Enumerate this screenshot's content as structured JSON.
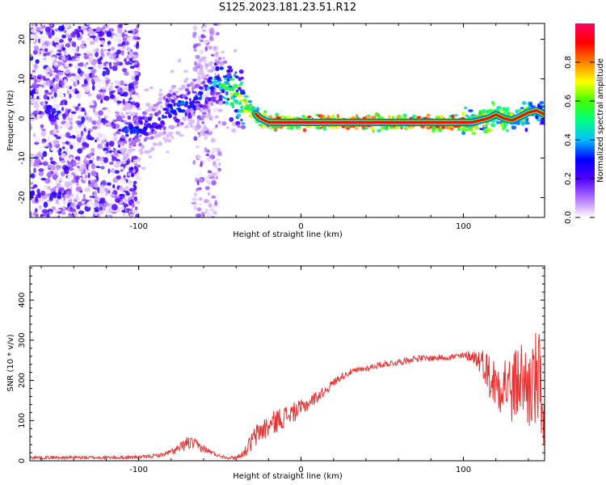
{
  "title": "S125.2023.181.23.51.R12",
  "chart_data": [
    {
      "type": "heatmap",
      "xlabel": "Height of straight line (km)",
      "ylabel": "Frequency (Hz)",
      "xlim": [
        -167,
        150
      ],
      "ylim": [
        -25,
        24
      ],
      "x_ticks": [
        -100,
        0,
        100
      ],
      "y_ticks": [
        -20,
        -10,
        0,
        10,
        20
      ],
      "colorbar": {
        "label": "Normalized spectral amplitude",
        "range": [
          0,
          1
        ],
        "ticks": [
          "0.0",
          "0.2",
          "0.4",
          "0.6",
          "0.8"
        ],
        "stops": [
          "#ffffff",
          "#b070ff",
          "#5000ff",
          "#0000ff",
          "#00c0ff",
          "#00ff80",
          "#40ff00",
          "#ffff00",
          "#ff8000",
          "#ff0000",
          "#ff0060"
        ]
      },
      "ridge": {
        "x": [
          -100,
          -90,
          -80,
          -70,
          -60,
          -52,
          -45,
          -40,
          -35,
          -30,
          -25,
          -20,
          -10,
          0,
          20,
          50,
          80,
          100,
          105,
          110,
          115,
          120,
          125,
          130,
          135,
          140,
          145,
          150
        ],
        "y": [
          -3,
          -1,
          2,
          4,
          6,
          10,
          7,
          5,
          4,
          2,
          0,
          -1,
          -1,
          -1,
          -1,
          -1,
          -1,
          -1,
          -1,
          -0.5,
          0,
          1,
          0,
          -0.5,
          0.5,
          1.5,
          2,
          1
        ],
        "amplitude": [
          0.35,
          0.35,
          0.4,
          0.4,
          0.4,
          0.45,
          0.7,
          0.75,
          0.8,
          0.85,
          0.85,
          0.9,
          0.95,
          0.95,
          0.95,
          0.95,
          0.95,
          0.95,
          0.9,
          0.85,
          0.8,
          0.8,
          0.75,
          0.75,
          0.7,
          0.65,
          0.6,
          0.55
        ]
      }
    },
    {
      "type": "line",
      "xlabel": "Height of straight line (km)",
      "ylabel": "SNR (10 * v/v)",
      "xlim": [
        -167,
        150
      ],
      "ylim": [
        0,
        485
      ],
      "x_ticks": [
        -100,
        0,
        100
      ],
      "y_ticks": [
        0,
        100,
        200,
        300,
        400
      ],
      "color": "#e83232",
      "series": [
        {
          "x": [
            -167,
            -150,
            -130,
            -110,
            -95,
            -85,
            -80,
            -75,
            -70,
            -65,
            -60,
            -55,
            -50,
            -45,
            -40,
            -35,
            -30,
            -25,
            -20,
            -15,
            -10,
            -5,
            0,
            5,
            10,
            15,
            20,
            25,
            30,
            40,
            50,
            60,
            70,
            80,
            90,
            100,
            105,
            110,
            113,
            116,
            120,
            125,
            130,
            135,
            140,
            145,
            150
          ],
          "y": [
            8,
            8,
            8,
            8,
            10,
            15,
            22,
            30,
            45,
            40,
            30,
            20,
            12,
            8,
            8,
            20,
            50,
            75,
            85,
            100,
            110,
            120,
            130,
            145,
            160,
            175,
            195,
            210,
            220,
            230,
            240,
            245,
            255,
            255,
            258,
            260,
            262,
            250,
            240,
            210,
            190,
            200,
            170,
            210,
            180,
            200,
            150
          ],
          "noise": [
            4,
            4,
            4,
            4,
            4,
            5,
            8,
            12,
            18,
            15,
            10,
            6,
            4,
            4,
            4,
            10,
            28,
            30,
            30,
            30,
            28,
            25,
            22,
            18,
            15,
            12,
            10,
            9,
            8,
            8,
            8,
            8,
            8,
            8,
            8,
            10,
            15,
            30,
            40,
            60,
            70,
            80,
            90,
            100,
            110,
            130,
            150
          ]
        }
      ]
    }
  ]
}
